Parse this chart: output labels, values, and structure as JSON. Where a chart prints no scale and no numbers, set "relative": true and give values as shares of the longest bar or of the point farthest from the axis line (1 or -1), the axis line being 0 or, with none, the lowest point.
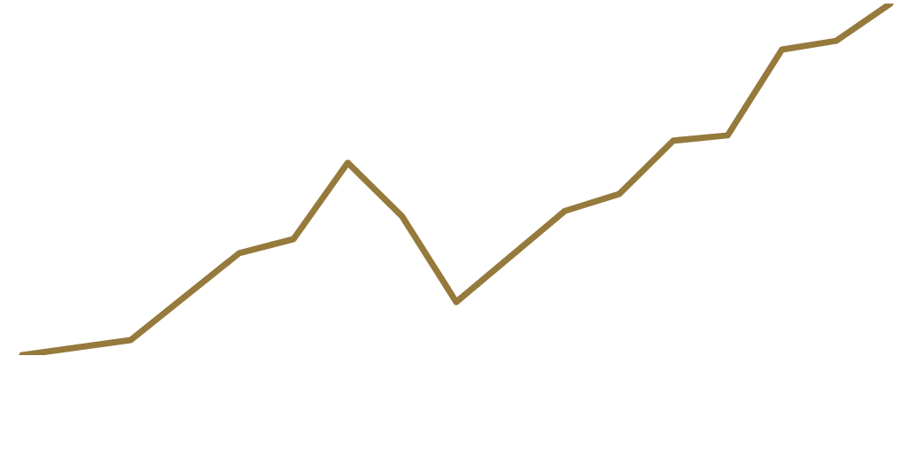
{
  "chart_data": {
    "type": "line",
    "relative": true,
    "categories": [
      null,
      null,
      null,
      null,
      null,
      null,
      null,
      null,
      null,
      null,
      null,
      null,
      null,
      null,
      null,
      null,
      null
    ],
    "series": [
      {
        "color": "#957a3c",
        "values": [
          0,
          null,
          0.043,
          null,
          0.29,
          0.33,
          0.547,
          0.395,
          0.151,
          null,
          0.41,
          0.458,
          0.61,
          0.625,
          0.869,
          0.894,
          1
        ]
      }
    ],
    "legend": false,
    "marker": "none",
    "line_style": "solid"
  }
}
